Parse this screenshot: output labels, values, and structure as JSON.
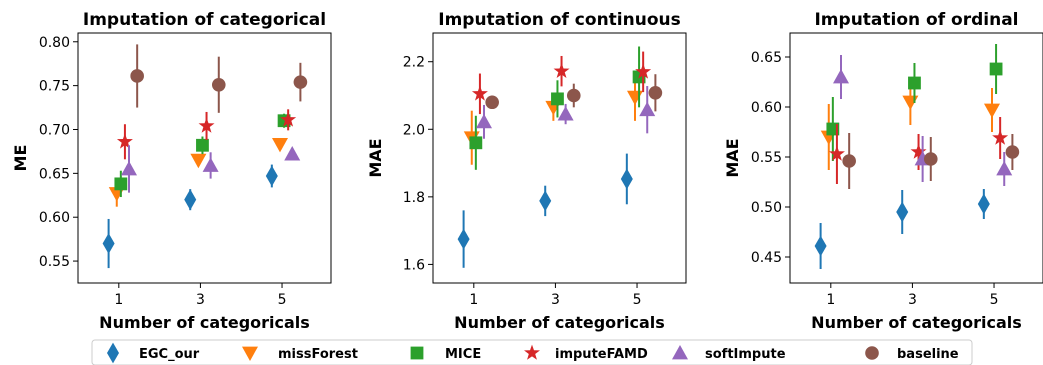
{
  "chart_data": [
    {
      "type": "scatter",
      "title": "Imputation of categorical",
      "xlabel": "Number of categoricals",
      "ylabel": "ME",
      "xticks": [
        1,
        3,
        5
      ],
      "xlim": [
        0.0,
        6.2
      ],
      "ylim": [
        0.525,
        0.81
      ],
      "yticks": [
        0.55,
        0.6,
        0.65,
        0.7,
        0.75,
        0.8
      ],
      "yticklabels": [
        "0.55",
        "0.60",
        "0.65",
        "0.70",
        "0.75",
        "0.80"
      ],
      "series": [
        {
          "name": "EGC_our",
          "x": [
            0.75,
            2.75,
            4.75
          ],
          "y": [
            0.57,
            0.62,
            0.647
          ],
          "err": [
            0.028,
            0.012,
            0.013
          ]
        },
        {
          "name": "missForest",
          "x": [
            0.95,
            2.95,
            4.95
          ],
          "y": [
            0.627,
            0.665,
            0.683
          ],
          "err": [
            0.015,
            0.005,
            0.003
          ]
        },
        {
          "name": "MICE",
          "x": [
            1.05,
            3.05,
            5.05
          ],
          "y": [
            0.638,
            0.682,
            0.71
          ],
          "err": [
            0.015,
            0.01,
            0.008
          ]
        },
        {
          "name": "imputeFAMD",
          "x": [
            1.15,
            3.15,
            5.15
          ],
          "y": [
            0.686,
            0.704,
            0.711
          ],
          "err": [
            0.02,
            0.016,
            0.012
          ]
        },
        {
          "name": "softImpute",
          "x": [
            1.25,
            3.25,
            5.25
          ],
          "y": [
            0.655,
            0.659,
            0.672
          ],
          "err": [
            0.027,
            0.015,
            0.004
          ]
        },
        {
          "name": "baseline",
          "x": [
            1.45,
            3.45,
            5.45
          ],
          "y": [
            0.761,
            0.751,
            0.754
          ],
          "err": [
            0.036,
            0.032,
            0.022
          ]
        }
      ]
    },
    {
      "type": "scatter",
      "title": "Imputation of continuous",
      "xlabel": "Number of categoricals",
      "ylabel": "MAE",
      "xticks": [
        1,
        3,
        5
      ],
      "xlim": [
        0.0,
        6.2
      ],
      "ylim": [
        1.545,
        2.285
      ],
      "yticks": [
        1.6,
        1.8,
        2.0,
        2.2
      ],
      "yticklabels": [
        "1.6",
        "1.8",
        "2.0",
        "2.2"
      ],
      "series": [
        {
          "name": "EGC_our",
          "x": [
            0.75,
            2.75,
            4.75
          ],
          "y": [
            1.675,
            1.788,
            1.853
          ],
          "err": [
            0.085,
            0.045,
            0.075
          ]
        },
        {
          "name": "missForest",
          "x": [
            0.95,
            2.95,
            4.95
          ],
          "y": [
            1.975,
            2.065,
            2.095
          ],
          "err": [
            0.08,
            0.04,
            0.07
          ]
        },
        {
          "name": "MICE",
          "x": [
            1.05,
            3.05,
            5.05
          ],
          "y": [
            1.96,
            2.09,
            2.155
          ],
          "err": [
            0.08,
            0.055,
            0.09
          ]
        },
        {
          "name": "imputeFAMD",
          "x": [
            1.15,
            3.15,
            5.15
          ],
          "y": [
            2.105,
            2.172,
            2.17
          ],
          "err": [
            0.06,
            0.045,
            0.06
          ]
        },
        {
          "name": "softImpute",
          "x": [
            1.25,
            3.25,
            5.25
          ],
          "y": [
            2.022,
            2.045,
            2.058
          ],
          "err": [
            0.05,
            0.03,
            0.07
          ]
        },
        {
          "name": "baseline",
          "x": [
            1.45,
            3.45,
            5.45
          ],
          "y": [
            2.08,
            2.1,
            2.108
          ],
          "err": [
            0.02,
            0.035,
            0.055
          ]
        }
      ]
    },
    {
      "type": "scatter",
      "title": "Imputation of ordinal",
      "xlabel": "Number of categoricals",
      "ylabel": "MAE",
      "xticks": [
        1,
        3,
        5
      ],
      "xlim": [
        0.0,
        6.2
      ],
      "ylim": [
        0.424,
        0.674
      ],
      "yticks": [
        0.45,
        0.5,
        0.55,
        0.6,
        0.65
      ],
      "yticklabels": [
        "0.45",
        "0.50",
        "0.55",
        "0.60",
        "0.65"
      ],
      "series": [
        {
          "name": "EGC_our",
          "x": [
            0.75,
            2.75,
            4.75
          ],
          "y": [
            0.461,
            0.495,
            0.503
          ],
          "err": [
            0.023,
            0.022,
            0.015
          ]
        },
        {
          "name": "missForest",
          "x": [
            0.95,
            2.95,
            4.95
          ],
          "y": [
            0.57,
            0.605,
            0.597
          ],
          "err": [
            0.033,
            0.023,
            0.022
          ]
        },
        {
          "name": "MICE",
          "x": [
            1.05,
            3.05,
            5.05
          ],
          "y": [
            0.578,
            0.624,
            0.638
          ],
          "err": [
            0.032,
            0.02,
            0.025
          ]
        },
        {
          "name": "imputeFAMD",
          "x": [
            1.15,
            3.15,
            5.15
          ],
          "y": [
            0.553,
            0.555,
            0.569
          ],
          "err": [
            0.03,
            0.018,
            0.021
          ]
        },
        {
          "name": "softImpute",
          "x": [
            1.25,
            3.25,
            5.25
          ],
          "y": [
            0.63,
            0.548,
            0.538
          ],
          "err": [
            0.022,
            0.023,
            0.017
          ]
        },
        {
          "name": "baseline",
          "x": [
            1.45,
            3.45,
            5.45
          ],
          "y": [
            0.546,
            0.548,
            0.555
          ],
          "err": [
            0.028,
            0.022,
            0.018
          ]
        }
      ]
    }
  ],
  "series_style": {
    "EGC_our": {
      "color": "#1f77b4",
      "marker": "diamond"
    },
    "missForest": {
      "color": "#ff7f0e",
      "marker": "triangle-down"
    },
    "MICE": {
      "color": "#2ca02c",
      "marker": "square"
    },
    "imputeFAMD": {
      "color": "#d62728",
      "marker": "star"
    },
    "softImpute": {
      "color": "#9467bd",
      "marker": "triangle-up"
    },
    "baseline": {
      "color": "#8c564b",
      "marker": "circle"
    }
  },
  "legend": {
    "placement": "bottom",
    "entries": [
      "EGC_our",
      "missForest",
      "MICE",
      "imputeFAMD",
      "softImpute",
      "baseline"
    ]
  }
}
